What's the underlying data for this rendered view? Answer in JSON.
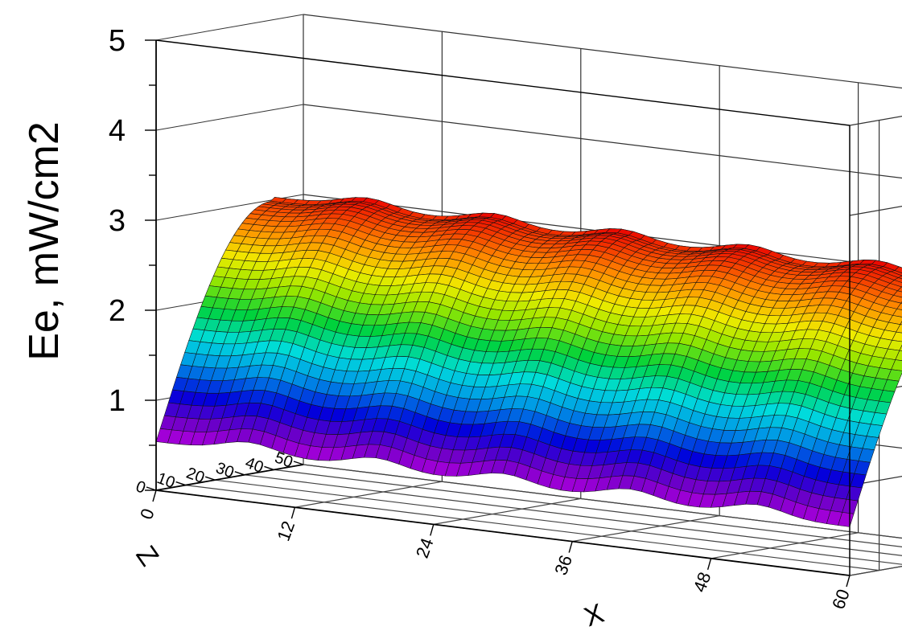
{
  "chart_data": {
    "type": "surface",
    "title": "",
    "zlabel": "Ee, mW/cm2",
    "xlabel": "X",
    "ylabel": "Z",
    "zlim": [
      0,
      5
    ],
    "xlim": [
      0,
      60
    ],
    "ylim": [
      0,
      50
    ],
    "z_ticks": [
      "1",
      "2",
      "3",
      "4",
      "5"
    ],
    "x_ticks": [
      "0",
      "12",
      "24",
      "36",
      "48",
      "60"
    ],
    "y_ticks": [
      "0",
      "10",
      "20",
      "30",
      "40",
      "50"
    ],
    "grid": true,
    "colormap": "rainbow",
    "surface": {
      "x_range": [
        0,
        60
      ],
      "y_range": [
        0,
        50
      ],
      "peak_value": 3.1,
      "edge_value_near": 0.6,
      "edge_value_far": 2.0,
      "ripple_peaks_x": [
        8,
        19,
        30,
        41,
        52
      ],
      "ripple_amplitude": 0.12
    }
  }
}
